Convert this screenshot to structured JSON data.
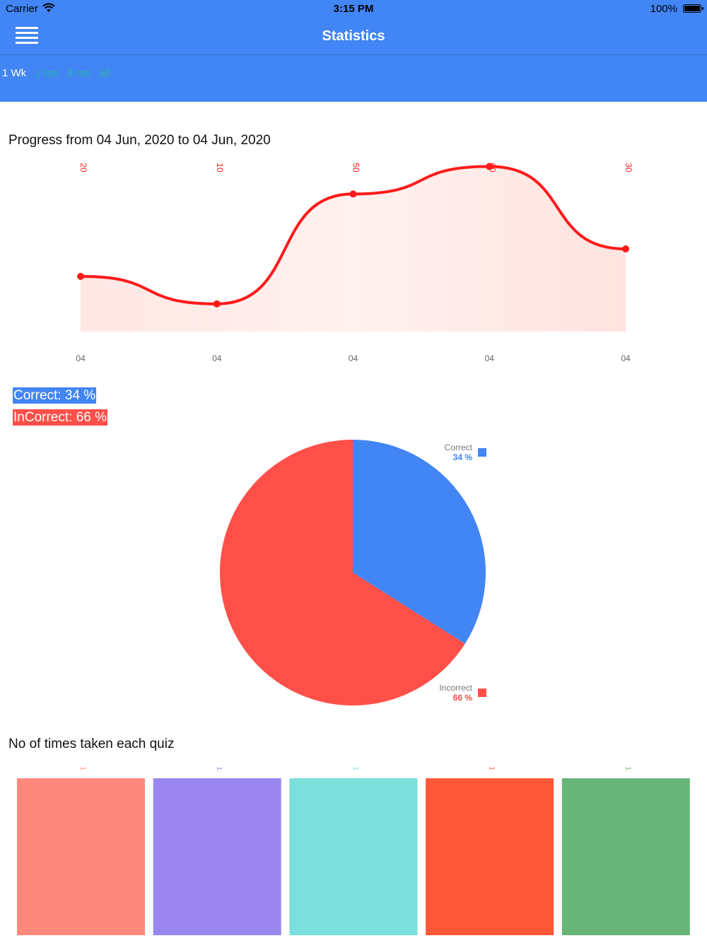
{
  "status_bar": {
    "carrier": "Carrier",
    "time": "3:15 PM",
    "battery": "100%"
  },
  "nav": {
    "title": "Statistics"
  },
  "range_tabs": [
    {
      "label": "1 Wk",
      "active": true
    },
    {
      "label": "1 mo",
      "active": false
    },
    {
      "label": "3 mo",
      "active": false
    },
    {
      "label": "all",
      "active": false
    }
  ],
  "progress": {
    "title": "Progress from 04 Jun, 2020 to 04 Jun, 2020",
    "chart_data": {
      "type": "line",
      "x": [
        "04",
        "04",
        "04",
        "04",
        "04"
      ],
      "values": [
        20,
        10,
        50,
        60,
        30
      ],
      "value_labels": [
        "20",
        "10",
        "50",
        "60",
        "30"
      ],
      "ylim": [
        -0.07,
        64
      ],
      "line_color": "#ff1a1a",
      "fill_color": "#ffe3df"
    }
  },
  "legend": {
    "correct": "Correct: 34 %",
    "incorrect": "InCorrect: 66 %"
  },
  "pie": {
    "chart_data": {
      "type": "pie",
      "slices": [
        {
          "name": "Correct",
          "value": 34,
          "label": "34 %",
          "color": "#4285f4"
        },
        {
          "name": "Incorrect",
          "value": 66,
          "label": "66 %",
          "color": "#fe5049"
        }
      ]
    }
  },
  "quiz": {
    "title": "No of times taken each quiz",
    "chart_data": {
      "type": "bar",
      "values": [
        1,
        1,
        1,
        1,
        1
      ],
      "value_labels": [
        "1",
        "1",
        "1",
        "1",
        "1"
      ],
      "colors": [
        "#fd887b",
        "#9a86ef",
        "#7bdfdb",
        "#fe5737",
        "#68b578"
      ],
      "ylim": [
        0,
        1
      ]
    }
  }
}
